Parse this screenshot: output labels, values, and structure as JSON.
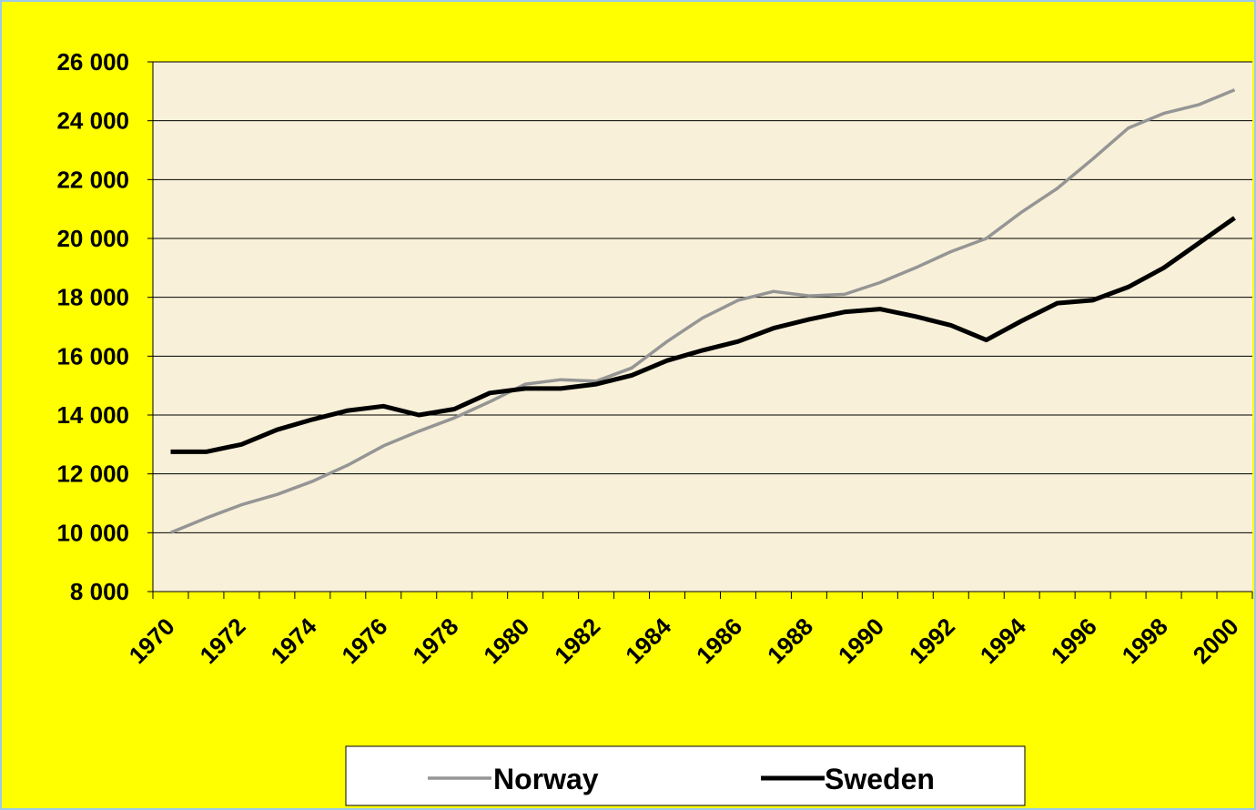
{
  "chart_data": {
    "type": "line",
    "categories": [
      "1970",
      null,
      "1972",
      null,
      "1974",
      null,
      "1976",
      null,
      "1978",
      null,
      "1980",
      null,
      "1982",
      null,
      "1984",
      null,
      "1986",
      null,
      "1988",
      null,
      "1990",
      null,
      "1992",
      null,
      "1994",
      null,
      "1996",
      null,
      "1998",
      null,
      "2000"
    ],
    "series": [
      {
        "name": "Norway",
        "color": "#959595",
        "values": [
          10000,
          10500,
          10950,
          11300,
          11750,
          12300,
          12950,
          13450,
          13900,
          14450,
          15050,
          15200,
          15150,
          15600,
          16500,
          17300,
          17900,
          18200,
          18050,
          18100,
          18500,
          19000,
          19550,
          20000,
          20900,
          21700,
          22700,
          23750,
          24250,
          24550,
          25050
        ]
      },
      {
        "name": "Sweden",
        "color": "#000000",
        "values": [
          12750,
          12750,
          13000,
          13500,
          13850,
          14150,
          14300,
          14000,
          14200,
          14750,
          14900,
          14900,
          15050,
          15350,
          15850,
          16200,
          16500,
          16950,
          17250,
          17500,
          17600,
          17350,
          17050,
          16550,
          17200,
          17800,
          17900,
          18350,
          19000,
          19850,
          20700
        ]
      }
    ],
    "ylim": [
      8000,
      26000
    ],
    "yticks": [
      {
        "value": 8000,
        "label": "8 000"
      },
      {
        "value": 10000,
        "label": "10 000"
      },
      {
        "value": 12000,
        "label": "12 000"
      },
      {
        "value": 14000,
        "label": "14 000"
      },
      {
        "value": 16000,
        "label": "16 000"
      },
      {
        "value": 18000,
        "label": "18 000"
      },
      {
        "value": 20000,
        "label": "20 000"
      },
      {
        "value": 22000,
        "label": "22 000"
      },
      {
        "value": 24000,
        "label": "24 000"
      },
      {
        "value": 26000,
        "label": "26 000"
      }
    ],
    "grid": true
  }
}
